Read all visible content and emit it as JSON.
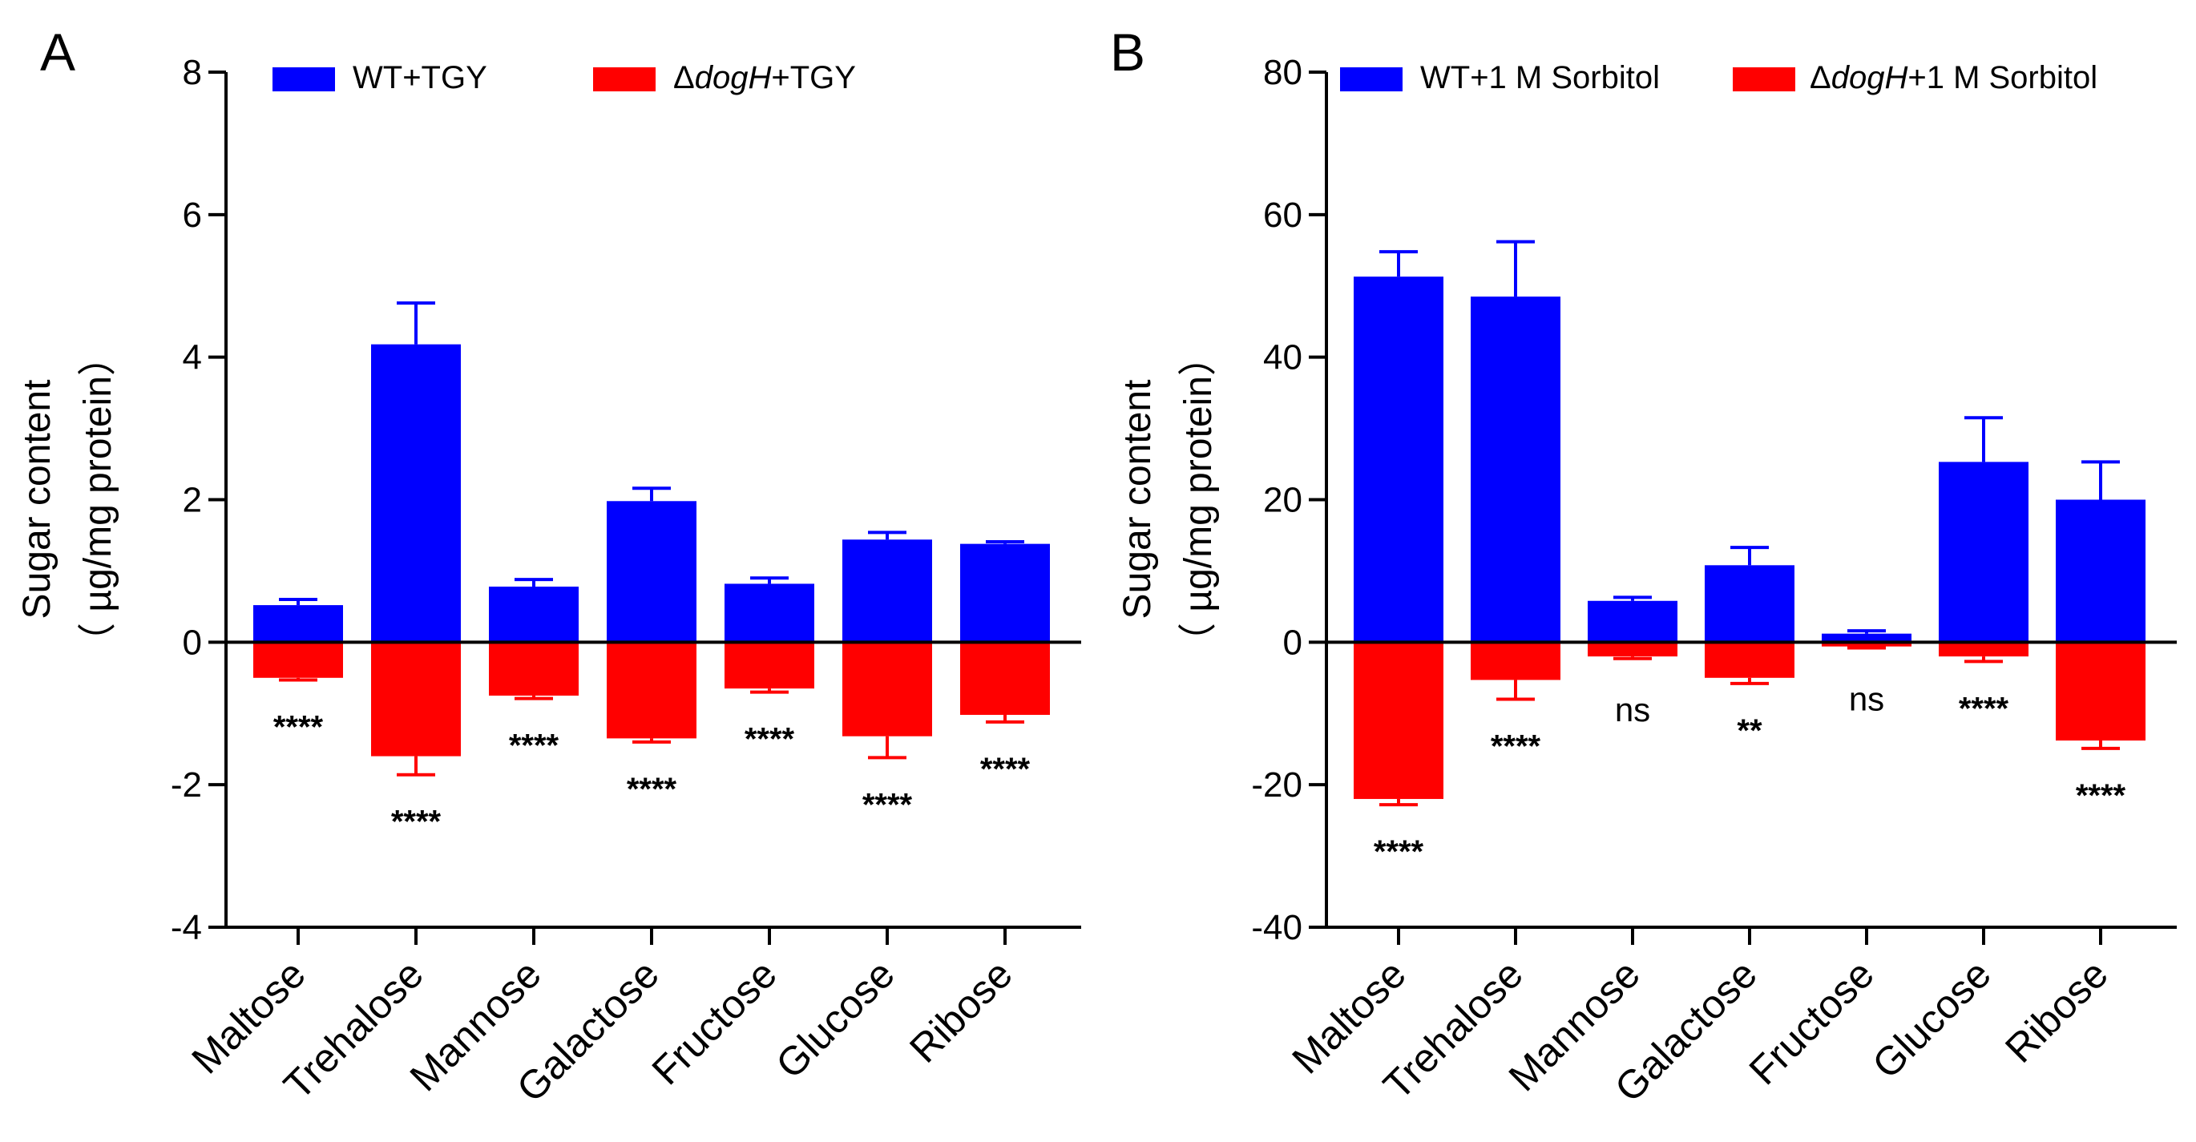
{
  "chart_data": [
    {
      "type": "bar",
      "panel_label": "A",
      "title": "",
      "ylabel_line1": "Sugar content",
      "ylabel_line2": "（ µg/mg protein）",
      "ylim": [
        -4,
        8
      ],
      "yticks": [
        -4,
        -2,
        0,
        2,
        4,
        6,
        8
      ],
      "categories": [
        "Maltose",
        "Trehalose",
        "Mannose",
        "Galactose",
        "Fructose",
        "Glucose",
        "Ribose"
      ],
      "series": [
        {
          "name": "WT+TGY",
          "name_parts": [
            "WT+TGY"
          ],
          "color": "#0000ff",
          "values": [
            0.52,
            4.18,
            0.78,
            1.98,
            0.82,
            1.44,
            1.38
          ],
          "errors": [
            0.08,
            0.58,
            0.1,
            0.18,
            0.08,
            0.1,
            0.03
          ]
        },
        {
          "name": "ΔdogH+TGY",
          "name_parts": [
            "Δ",
            "dogH",
            "+TGY"
          ],
          "color": "#ff0000",
          "values": [
            -0.5,
            -1.6,
            -0.75,
            -1.35,
            -0.65,
            -1.32,
            -1.02
          ],
          "errors": [
            0.03,
            0.26,
            0.04,
            0.05,
            0.05,
            0.3,
            0.1
          ]
        }
      ],
      "significance": [
        "****",
        "****",
        "****",
        "****",
        "****",
        "****",
        "****"
      ],
      "legend": "top"
    },
    {
      "type": "bar",
      "panel_label": "B",
      "title": "",
      "ylabel_line1": "Sugar content",
      "ylabel_line2": "（ µg/mg protein）",
      "ylim": [
        -40,
        80
      ],
      "yticks": [
        -40,
        -20,
        0,
        20,
        40,
        60,
        80
      ],
      "categories": [
        "Maltose",
        "Trehalose",
        "Mannose",
        "Galactose",
        "Fructose",
        "Glucose",
        "Ribose"
      ],
      "series": [
        {
          "name": "WT+1 M Sorbitol",
          "name_parts": [
            "WT+1 M Sorbitol"
          ],
          "color": "#0000ff",
          "values": [
            51.3,
            48.5,
            5.8,
            10.8,
            1.2,
            25.3,
            20.0
          ],
          "errors": [
            3.5,
            7.7,
            0.5,
            2.5,
            0.4,
            6.2,
            5.3
          ]
        },
        {
          "name": "ΔdogH+1 M Sorbitol",
          "name_parts": [
            "Δ",
            "dogH",
            "+1 M Sorbitol"
          ],
          "color": "#ff0000",
          "values": [
            -22.0,
            -5.3,
            -2.0,
            -5.0,
            -0.6,
            -2.0,
            -13.8
          ],
          "errors": [
            0.8,
            2.7,
            0.3,
            0.8,
            0.2,
            0.7,
            1.1
          ]
        }
      ],
      "significance": [
        "****",
        "****",
        "ns",
        "**",
        "ns",
        "****",
        "****"
      ],
      "legend": "top"
    }
  ]
}
